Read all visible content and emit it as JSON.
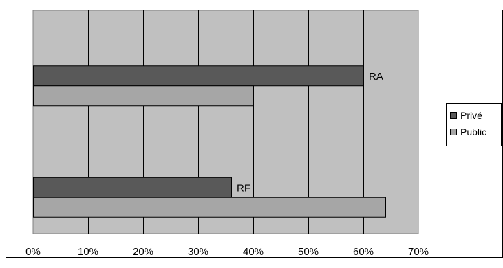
{
  "chart_data": {
    "type": "bar",
    "orientation": "horizontal",
    "categories": [
      "RF",
      "RA"
    ],
    "series": [
      {
        "name": "Privé",
        "values": [
          36,
          60
        ],
        "color": "#595959"
      },
      {
        "name": "Public",
        "values": [
          64,
          40
        ],
        "color": "#a6a6a6"
      }
    ],
    "xlim": [
      0,
      70
    ],
    "xticks": [
      0,
      10,
      20,
      30,
      40,
      50,
      60,
      70
    ],
    "tick_suffix": "%",
    "plot_background": "#c0c0c0",
    "grid": "vertical",
    "legend_position": "right"
  }
}
